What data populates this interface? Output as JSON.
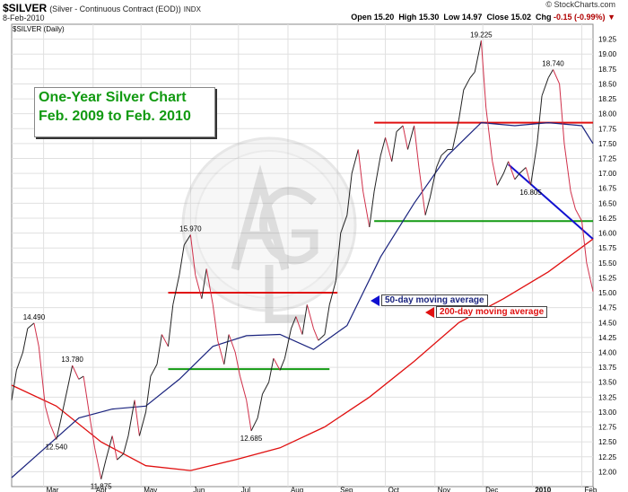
{
  "header": {
    "symbol": "$SILVER",
    "description": "(Silver - Continuous Contract (EOD))",
    "exchange": "INDX",
    "brand": "© StockCharts.com",
    "date": "8-Feb-2010",
    "open_label": "Open",
    "open": "15.20",
    "high_label": "High",
    "high": "15.30",
    "low_label": "Low",
    "low": "14.97",
    "close_label": "Close",
    "close": "15.02",
    "chg_label": "Chg",
    "chg": "-0.15 (-0.99%)"
  },
  "colors": {
    "price_line_up": "#222222",
    "price_line_down": "#d0304a",
    "ma50": "#1a237e",
    "ma200": "#e01010",
    "title_text": "#129a12",
    "support_line": "#129a12",
    "resistance_line": "#e01010",
    "trend_line": "#1010d0",
    "grid": "#e0e0e0"
  },
  "chart_data": {
    "type": "line",
    "title": "$SILVER (Daily)",
    "overlay_title_lines": [
      "One-Year Silver Chart",
      "Feb. 2009 to Feb. 2010"
    ],
    "ylim": [
      11.75,
      19.5
    ],
    "yscale": "linear",
    "yaxis_side": "right",
    "grid": true,
    "y_ticks": [
      "12.00",
      "12.25",
      "12.50",
      "12.75",
      "13.00",
      "13.25",
      "13.50",
      "13.75",
      "14.00",
      "14.25",
      "14.50",
      "14.75",
      "15.00",
      "15.25",
      "15.50",
      "15.75",
      "16.00",
      "16.25",
      "16.50",
      "16.75",
      "17.00",
      "17.25",
      "17.50",
      "17.75",
      "18.00",
      "18.25",
      "18.50",
      "18.75",
      "19.00",
      "19.25"
    ],
    "x_ticks": [
      "Mar",
      "Apr",
      "May",
      "Jun",
      "Jul",
      "Aug",
      "Sep",
      "Oct",
      "Nov",
      "Dec",
      "2010",
      "Feb"
    ],
    "x_ticks_bold": [
      "2010"
    ],
    "series": [
      {
        "name": "$SILVER",
        "x": [
          "2009-02-09",
          "2009-02-12",
          "2009-02-16",
          "2009-02-19",
          "2009-02-23",
          "2009-02-26",
          "2009-03-02",
          "2009-03-05",
          "2009-03-09",
          "2009-03-12",
          "2009-03-16",
          "2009-03-19",
          "2009-03-23",
          "2009-03-26",
          "2009-03-30",
          "2009-04-02",
          "2009-04-06",
          "2009-04-09",
          "2009-04-13",
          "2009-04-16",
          "2009-04-20",
          "2009-04-23",
          "2009-04-27",
          "2009-04-30",
          "2009-05-04",
          "2009-05-07",
          "2009-05-11",
          "2009-05-14",
          "2009-05-18",
          "2009-05-21",
          "2009-05-25",
          "2009-05-28",
          "2009-06-01",
          "2009-06-04",
          "2009-06-08",
          "2009-06-11",
          "2009-06-15",
          "2009-06-18",
          "2009-06-22",
          "2009-06-25",
          "2009-06-29",
          "2009-07-02",
          "2009-07-06",
          "2009-07-09",
          "2009-07-13",
          "2009-07-16",
          "2009-07-20",
          "2009-07-23",
          "2009-07-27",
          "2009-07-30",
          "2009-08-03",
          "2009-08-06",
          "2009-08-10",
          "2009-08-13",
          "2009-08-17",
          "2009-08-20",
          "2009-08-24",
          "2009-08-27",
          "2009-08-31",
          "2009-09-03",
          "2009-09-07",
          "2009-09-10",
          "2009-09-14",
          "2009-09-17",
          "2009-09-21",
          "2009-09-24",
          "2009-09-28",
          "2009-10-01",
          "2009-10-05",
          "2009-10-08",
          "2009-10-12",
          "2009-10-15",
          "2009-10-19",
          "2009-10-22",
          "2009-10-26",
          "2009-10-29",
          "2009-11-02",
          "2009-11-05",
          "2009-11-09",
          "2009-11-12",
          "2009-11-16",
          "2009-11-19",
          "2009-11-23",
          "2009-11-26",
          "2009-11-30",
          "2009-12-03",
          "2009-12-07",
          "2009-12-10",
          "2009-12-14",
          "2009-12-17",
          "2009-12-21",
          "2009-12-24",
          "2009-12-28",
          "2009-12-31",
          "2010-01-04",
          "2010-01-07",
          "2010-01-11",
          "2010-01-14",
          "2010-01-18",
          "2010-01-21",
          "2010-01-25",
          "2010-01-28",
          "2010-02-01",
          "2010-02-04",
          "2010-02-08"
        ],
        "values": [
          13.2,
          13.7,
          14.0,
          14.4,
          14.49,
          14.1,
          13.1,
          12.8,
          12.54,
          12.9,
          13.4,
          13.78,
          13.55,
          13.6,
          12.9,
          12.4,
          11.875,
          12.2,
          12.6,
          12.2,
          12.3,
          12.6,
          13.2,
          12.6,
          13.0,
          13.6,
          13.8,
          14.3,
          14.1,
          14.8,
          15.3,
          15.8,
          15.97,
          15.3,
          14.9,
          15.4,
          14.8,
          14.2,
          13.8,
          14.3,
          14.0,
          13.6,
          13.2,
          12.685,
          12.9,
          13.3,
          13.5,
          13.9,
          13.7,
          13.9,
          14.4,
          14.6,
          14.3,
          14.8,
          14.4,
          14.2,
          14.3,
          14.8,
          15.2,
          16.0,
          16.3,
          17.0,
          17.4,
          16.7,
          16.1,
          16.7,
          17.3,
          17.6,
          17.2,
          17.7,
          17.8,
          17.4,
          17.8,
          17.1,
          16.3,
          16.6,
          17.1,
          17.3,
          17.4,
          17.4,
          17.9,
          18.4,
          18.6,
          18.7,
          19.225,
          18.1,
          17.2,
          16.8,
          17.0,
          17.2,
          16.9,
          17.0,
          17.1,
          16.805,
          17.5,
          18.3,
          18.6,
          18.74,
          18.5,
          17.5,
          16.7,
          16.4,
          16.2,
          15.5,
          15.02
        ]
      },
      {
        "name": "50-day moving average",
        "x": [
          "2009-02-09",
          "2009-03-02",
          "2009-03-23",
          "2009-04-13",
          "2009-05-04",
          "2009-05-25",
          "2009-06-15",
          "2009-07-06",
          "2009-07-27",
          "2009-08-17",
          "2009-09-07",
          "2009-09-28",
          "2009-10-19",
          "2009-11-09",
          "2009-11-30",
          "2009-12-21",
          "2010-01-11",
          "2010-02-01",
          "2010-02-08"
        ],
        "values": [
          11.9,
          12.4,
          12.9,
          13.05,
          13.1,
          13.55,
          14.1,
          14.28,
          14.3,
          14.05,
          14.45,
          15.6,
          16.5,
          17.3,
          17.85,
          17.8,
          17.85,
          17.8,
          17.5
        ]
      },
      {
        "name": "200-day moving average",
        "x": [
          "2009-02-09",
          "2009-03-09",
          "2009-04-06",
          "2009-05-04",
          "2009-06-01",
          "2009-06-29",
          "2009-07-27",
          "2009-08-24",
          "2009-09-21",
          "2009-10-19",
          "2009-11-16",
          "2009-12-14",
          "2010-01-11",
          "2010-02-08"
        ],
        "values": [
          13.45,
          13.1,
          12.5,
          12.1,
          12.02,
          12.2,
          12.4,
          12.75,
          13.25,
          13.85,
          14.5,
          14.9,
          15.35,
          15.9
        ]
      }
    ],
    "annotations": [
      {
        "text": "14.490",
        "x": "2009-02-23",
        "y": 14.49
      },
      {
        "text": "12.540",
        "x": "2009-03-09",
        "y": 12.54
      },
      {
        "text": "13.780",
        "x": "2009-03-19",
        "y": 13.78
      },
      {
        "text": "11.875",
        "x": "2009-04-06",
        "y": 11.875
      },
      {
        "text": "15.970",
        "x": "2009-06-01",
        "y": 15.97
      },
      {
        "text": "12.685",
        "x": "2009-07-09",
        "y": 12.685
      },
      {
        "text": "19.225",
        "x": "2009-11-30",
        "y": 19.225
      },
      {
        "text": "16.805",
        "x": "2009-12-31",
        "y": 16.805
      },
      {
        "text": "18.740",
        "x": "2010-01-14",
        "y": 18.74
      }
    ],
    "callouts": [
      {
        "text": "50-day moving average",
        "color": "#1a237e",
        "arrow_color": "#1010d0"
      },
      {
        "text": "200-day moving average",
        "color": "#e01010",
        "arrow_color": "#e01010"
      }
    ],
    "reference_lines": [
      {
        "kind": "resistance",
        "y": 15.0,
        "x_from": "2009-05-18",
        "x_to": "2009-09-01"
      },
      {
        "kind": "support",
        "y": 13.72,
        "x_from": "2009-05-18",
        "x_to": "2009-08-27"
      },
      {
        "kind": "resistance",
        "y": 17.85,
        "x_from": "2009-09-24",
        "x_to": "2010-02-08"
      },
      {
        "kind": "support",
        "y": 16.2,
        "x_from": "2009-09-24",
        "x_to": "2010-02-08"
      },
      {
        "kind": "trend",
        "from": [
          "2009-12-17",
          17.15
        ],
        "to": [
          "2010-02-08",
          15.9
        ]
      }
    ]
  }
}
